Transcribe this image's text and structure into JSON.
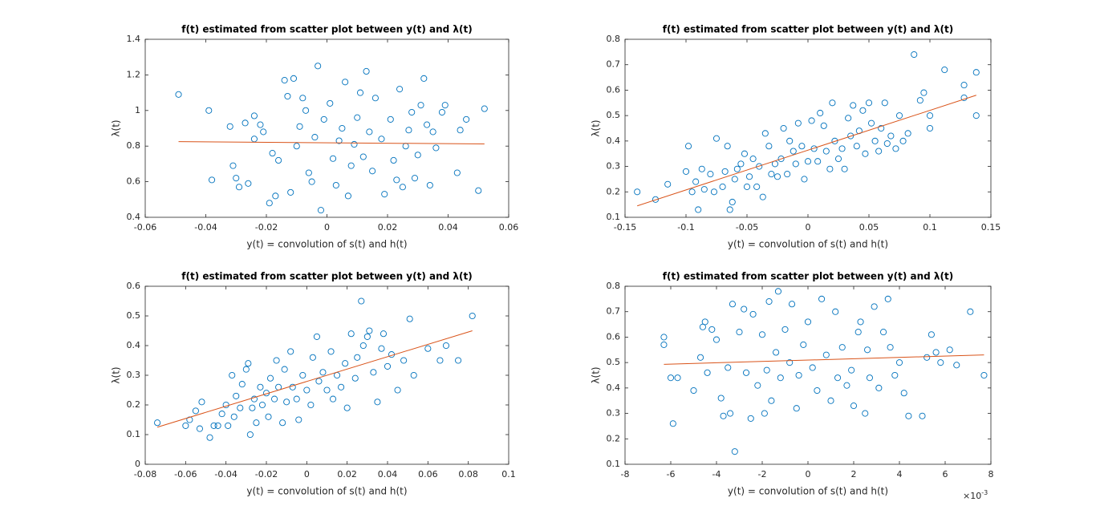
{
  "chart_data": [
    {
      "type": "scatter",
      "title": "f(t) estimated from scatter plot between y(t) and λ(t)",
      "xlabel": "y(t) = convolution of s(t) and h(t)",
      "ylabel": "λ(t)",
      "xlim": [
        -0.06,
        0.06
      ],
      "xticks": [
        -0.06,
        -0.04,
        -0.02,
        0,
        0.02,
        0.04,
        0.06
      ],
      "ylim": [
        0.4,
        1.4
      ],
      "yticks": [
        0.4,
        0.6,
        0.8,
        1,
        1.2,
        1.4
      ],
      "series": [
        {
          "color": "#0072bd",
          "marker": "circle",
          "x": [
            -0.049,
            -0.039,
            -0.038,
            -0.032,
            -0.031,
            -0.03,
            -0.029,
            -0.027,
            -0.026,
            -0.024,
            -0.024,
            -0.022,
            -0.021,
            -0.019,
            -0.018,
            -0.017,
            -0.016,
            -0.014,
            -0.013,
            -0.012,
            -0.011,
            -0.01,
            -0.009,
            -0.008,
            -0.007,
            -0.006,
            -0.005,
            -0.004,
            -0.003,
            -0.002,
            -0.001,
            0.001,
            0.002,
            0.003,
            0.004,
            0.005,
            0.006,
            0.007,
            0.008,
            0.009,
            0.01,
            0.011,
            0.012,
            0.013,
            0.014,
            0.015,
            0.016,
            0.018,
            0.019,
            0.021,
            0.022,
            0.023,
            0.024,
            0.025,
            0.026,
            0.027,
            0.028,
            0.029,
            0.03,
            0.031,
            0.032,
            0.033,
            0.034,
            0.035,
            0.036,
            0.038,
            0.039,
            0.043,
            0.044,
            0.046,
            0.05,
            0.052
          ],
          "values": [
            1.09,
            1.0,
            0.61,
            0.91,
            0.69,
            0.62,
            0.57,
            0.93,
            0.59,
            0.84,
            0.97,
            0.92,
            0.88,
            0.48,
            0.76,
            0.52,
            0.72,
            1.17,
            1.08,
            0.54,
            1.18,
            0.8,
            0.91,
            1.07,
            1.0,
            0.65,
            0.6,
            0.85,
            1.25,
            0.44,
            0.95,
            1.04,
            0.73,
            0.58,
            0.83,
            0.9,
            1.16,
            0.52,
            0.69,
            0.81,
            0.96,
            1.1,
            0.74,
            1.22,
            0.88,
            0.66,
            1.07,
            0.84,
            0.53,
            0.95,
            0.72,
            0.61,
            1.12,
            0.57,
            0.8,
            0.89,
            0.99,
            0.62,
            0.75,
            1.03,
            1.18,
            0.92,
            0.58,
            0.88,
            0.79,
            0.99,
            1.03,
            0.65,
            0.89,
            0.95,
            0.55,
            1.01
          ]
        },
        {
          "type": "line",
          "color": "#d95319",
          "x": [
            -0.049,
            0.052
          ],
          "values": [
            0.825,
            0.812
          ]
        }
      ]
    },
    {
      "type": "scatter",
      "title": "f(t) estimated from scatter plot between y(t) and λ(t)",
      "xlabel": "y(t) = convolution of s(t) and h(t)",
      "ylabel": "λ(t)",
      "xlim": [
        -0.15,
        0.15
      ],
      "xticks": [
        -0.15,
        -0.1,
        -0.05,
        0,
        0.05,
        0.1,
        0.15
      ],
      "ylim": [
        0.1,
        0.8
      ],
      "yticks": [
        0.1,
        0.2,
        0.3,
        0.4,
        0.5,
        0.6,
        0.7,
        0.8
      ],
      "series": [
        {
          "color": "#0072bd",
          "marker": "circle",
          "x": [
            -0.14,
            -0.125,
            -0.115,
            -0.1,
            -0.098,
            -0.095,
            -0.092,
            -0.09,
            -0.087,
            -0.085,
            -0.08,
            -0.077,
            -0.075,
            -0.07,
            -0.068,
            -0.066,
            -0.064,
            -0.062,
            -0.06,
            -0.058,
            -0.055,
            -0.052,
            -0.05,
            -0.048,
            -0.045,
            -0.042,
            -0.04,
            -0.037,
            -0.035,
            -0.032,
            -0.03,
            -0.027,
            -0.025,
            -0.022,
            -0.02,
            -0.017,
            -0.015,
            -0.012,
            -0.01,
            -0.008,
            -0.005,
            -0.003,
            0,
            0.003,
            0.005,
            0.008,
            0.01,
            0.013,
            0.015,
            0.018,
            0.02,
            0.022,
            0.025,
            0.028,
            0.03,
            0.033,
            0.035,
            0.037,
            0.04,
            0.042,
            0.045,
            0.047,
            0.05,
            0.052,
            0.055,
            0.058,
            0.06,
            0.063,
            0.065,
            0.068,
            0.072,
            0.075,
            0.078,
            0.082,
            0.087,
            0.092,
            0.095,
            0.1,
            0.1,
            0.112,
            0.128,
            0.128,
            0.138,
            0.138
          ],
          "values": [
            0.2,
            0.17,
            0.23,
            0.28,
            0.38,
            0.2,
            0.24,
            0.13,
            0.29,
            0.21,
            0.27,
            0.2,
            0.41,
            0.22,
            0.28,
            0.38,
            0.13,
            0.16,
            0.25,
            0.29,
            0.31,
            0.35,
            0.22,
            0.26,
            0.33,
            0.22,
            0.3,
            0.18,
            0.43,
            0.38,
            0.27,
            0.31,
            0.26,
            0.33,
            0.45,
            0.27,
            0.4,
            0.36,
            0.31,
            0.47,
            0.38,
            0.25,
            0.32,
            0.48,
            0.37,
            0.32,
            0.51,
            0.46,
            0.36,
            0.29,
            0.55,
            0.4,
            0.33,
            0.37,
            0.29,
            0.49,
            0.42,
            0.54,
            0.38,
            0.44,
            0.52,
            0.35,
            0.55,
            0.47,
            0.4,
            0.36,
            0.45,
            0.55,
            0.39,
            0.42,
            0.37,
            0.5,
            0.4,
            0.43,
            0.74,
            0.56,
            0.59,
            0.45,
            0.5,
            0.68,
            0.62,
            0.57,
            0.67,
            0.5
          ]
        },
        {
          "type": "line",
          "color": "#d95319",
          "x": [
            -0.14,
            0.138
          ],
          "values": [
            0.145,
            0.58
          ]
        }
      ]
    },
    {
      "type": "scatter",
      "title": "f(t) estimated from scatter plot between y(t) and λ(t)",
      "xlabel": "y(t) = convolution of s(t) and h(t)",
      "ylabel": "λ(t)",
      "xlim": [
        -0.08,
        0.1
      ],
      "xticks": [
        -0.08,
        -0.06,
        -0.04,
        -0.02,
        0,
        0.02,
        0.04,
        0.06,
        0.08,
        0.1
      ],
      "ylim": [
        0,
        0.6
      ],
      "yticks": [
        0,
        0.1,
        0.2,
        0.3,
        0.4,
        0.5,
        0.6
      ],
      "series": [
        {
          "color": "#0072bd",
          "marker": "circle",
          "x": [
            -0.074,
            -0.06,
            -0.058,
            -0.055,
            -0.053,
            -0.052,
            -0.048,
            -0.046,
            -0.044,
            -0.042,
            -0.04,
            -0.039,
            -0.037,
            -0.036,
            -0.035,
            -0.033,
            -0.032,
            -0.03,
            -0.029,
            -0.028,
            -0.027,
            -0.026,
            -0.025,
            -0.023,
            -0.022,
            -0.02,
            -0.019,
            -0.018,
            -0.016,
            -0.015,
            -0.014,
            -0.012,
            -0.011,
            -0.01,
            -0.008,
            -0.007,
            -0.005,
            -0.004,
            -0.002,
            0,
            0.002,
            0.003,
            0.005,
            0.006,
            0.008,
            0.01,
            0.012,
            0.013,
            0.015,
            0.017,
            0.019,
            0.02,
            0.022,
            0.024,
            0.025,
            0.027,
            0.028,
            0.03,
            0.031,
            0.033,
            0.035,
            0.037,
            0.038,
            0.04,
            0.042,
            0.045,
            0.048,
            0.051,
            0.053,
            0.06,
            0.066,
            0.069,
            0.075,
            0.082
          ],
          "values": [
            0.14,
            0.13,
            0.15,
            0.18,
            0.12,
            0.21,
            0.09,
            0.13,
            0.13,
            0.17,
            0.2,
            0.13,
            0.3,
            0.16,
            0.23,
            0.19,
            0.27,
            0.32,
            0.34,
            0.1,
            0.19,
            0.22,
            0.14,
            0.26,
            0.2,
            0.24,
            0.16,
            0.29,
            0.22,
            0.35,
            0.26,
            0.14,
            0.32,
            0.21,
            0.38,
            0.26,
            0.22,
            0.15,
            0.3,
            0.25,
            0.2,
            0.36,
            0.43,
            0.28,
            0.31,
            0.25,
            0.38,
            0.22,
            0.3,
            0.26,
            0.34,
            0.19,
            0.44,
            0.29,
            0.36,
            0.55,
            0.4,
            0.43,
            0.45,
            0.31,
            0.21,
            0.39,
            0.44,
            0.33,
            0.37,
            0.25,
            0.35,
            0.49,
            0.3,
            0.39,
            0.35,
            0.4,
            0.35,
            0.5
          ]
        },
        {
          "type": "line",
          "color": "#d95319",
          "x": [
            -0.074,
            0.082
          ],
          "values": [
            0.125,
            0.45
          ]
        }
      ]
    },
    {
      "type": "scatter",
      "title": "f(t) estimated from scatter plot between y(t) and λ(t)",
      "xlabel": "y(t) = convolution of s(t) and h(t)",
      "ylabel": "λ(t)",
      "x_exponent_base": "×10",
      "x_exponent_power": "-3",
      "xlim": [
        -0.008,
        0.008
      ],
      "xticks": [
        {
          "value": -0.008,
          "label": "-8"
        },
        {
          "value": -0.006,
          "label": "-6"
        },
        {
          "value": -0.004,
          "label": "-4"
        },
        {
          "value": -0.002,
          "label": "-2"
        },
        {
          "value": 0,
          "label": "0"
        },
        {
          "value": 0.002,
          "label": "2"
        },
        {
          "value": 0.004,
          "label": "4"
        },
        {
          "value": 0.006,
          "label": "6"
        },
        {
          "value": 0.008,
          "label": "8"
        }
      ],
      "ylim": [
        0.1,
        0.8
      ],
      "yticks": [
        0.1,
        0.2,
        0.3,
        0.4,
        0.5,
        0.6,
        0.7,
        0.8
      ],
      "series": [
        {
          "color": "#0072bd",
          "marker": "circle",
          "x": [
            -0.0063,
            -0.0063,
            -0.006,
            -0.0059,
            -0.0057,
            -0.005,
            -0.0047,
            -0.0046,
            -0.0045,
            -0.0044,
            -0.0042,
            -0.004,
            -0.0038,
            -0.0037,
            -0.0035,
            -0.0034,
            -0.0033,
            -0.0032,
            -0.003,
            -0.0028,
            -0.0027,
            -0.0025,
            -0.0024,
            -0.0022,
            -0.002,
            -0.0019,
            -0.0018,
            -0.0017,
            -0.0016,
            -0.0014,
            -0.0013,
            -0.0012,
            -0.001,
            -0.0008,
            -0.0007,
            -0.0005,
            -0.0004,
            -0.0002,
            0,
            0.0002,
            0.0004,
            0.0006,
            0.0008,
            0.001,
            0.0012,
            0.0013,
            0.0015,
            0.0017,
            0.0019,
            0.002,
            0.0022,
            0.0023,
            0.0025,
            0.0026,
            0.0027,
            0.0029,
            0.0031,
            0.0033,
            0.0035,
            0.0036,
            0.0038,
            0.004,
            0.0042,
            0.0044,
            0.005,
            0.0052,
            0.0054,
            0.0056,
            0.0058,
            0.0062,
            0.0065,
            0.0071,
            0.0077
          ],
          "values": [
            0.6,
            0.57,
            0.44,
            0.26,
            0.44,
            0.39,
            0.52,
            0.64,
            0.66,
            0.46,
            0.63,
            0.59,
            0.36,
            0.29,
            0.48,
            0.3,
            0.73,
            0.15,
            0.62,
            0.71,
            0.46,
            0.28,
            0.69,
            0.41,
            0.61,
            0.3,
            0.47,
            0.74,
            0.35,
            0.54,
            0.78,
            0.44,
            0.63,
            0.5,
            0.73,
            0.32,
            0.45,
            0.57,
            0.66,
            0.48,
            0.39,
            0.75,
            0.53,
            0.35,
            0.7,
            0.44,
            0.56,
            0.41,
            0.47,
            0.33,
            0.62,
            0.66,
            0.3,
            0.55,
            0.44,
            0.72,
            0.4,
            0.62,
            0.75,
            0.56,
            0.45,
            0.5,
            0.38,
            0.29,
            0.29,
            0.52,
            0.61,
            0.54,
            0.5,
            0.55,
            0.49,
            0.7,
            0.45
          ]
        },
        {
          "type": "line",
          "color": "#d95319",
          "x": [
            -0.0063,
            0.0077
          ],
          "values": [
            0.493,
            0.53
          ]
        }
      ]
    }
  ]
}
